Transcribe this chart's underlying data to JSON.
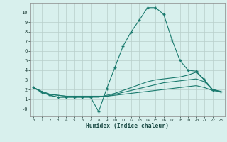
{
  "x": [
    0,
    1,
    2,
    3,
    4,
    5,
    6,
    7,
    8,
    9,
    10,
    11,
    12,
    13,
    14,
    15,
    16,
    17,
    18,
    19,
    20,
    21,
    22,
    23
  ],
  "line1": [
    2.2,
    1.7,
    1.4,
    1.2,
    1.2,
    1.2,
    1.2,
    1.2,
    -0.3,
    2.1,
    4.3,
    6.5,
    8.0,
    9.2,
    10.5,
    10.5,
    9.8,
    7.2,
    5.0,
    4.0,
    3.9,
    3.0,
    1.9,
    1.8
  ],
  "line2": [
    2.2,
    1.7,
    1.4,
    1.2,
    1.2,
    1.2,
    1.2,
    1.2,
    1.2,
    1.4,
    1.6,
    1.9,
    2.2,
    2.5,
    2.8,
    3.0,
    3.1,
    3.2,
    3.3,
    3.5,
    3.8,
    3.0,
    2.0,
    1.8
  ],
  "line3": [
    2.2,
    1.8,
    1.5,
    1.4,
    1.3,
    1.3,
    1.3,
    1.3,
    1.3,
    1.3,
    1.5,
    1.7,
    1.9,
    2.1,
    2.3,
    2.5,
    2.7,
    2.8,
    2.9,
    3.0,
    3.1,
    2.8,
    2.0,
    1.8
  ],
  "line4": [
    2.2,
    1.8,
    1.5,
    1.4,
    1.3,
    1.3,
    1.3,
    1.3,
    1.3,
    1.3,
    1.4,
    1.5,
    1.6,
    1.7,
    1.8,
    1.9,
    2.0,
    2.1,
    2.2,
    2.3,
    2.4,
    2.2,
    1.9,
    1.8
  ],
  "color": "#1a7a6e",
  "bg_color": "#d8f0ed",
  "grid_color": "#b8ceca",
  "xlabel": "Humidex (Indice chaleur)",
  "ylim": [
    -0.8,
    11.0
  ],
  "xlim": [
    -0.5,
    23.5
  ],
  "yticks": [
    0,
    1,
    2,
    3,
    4,
    5,
    6,
    7,
    8,
    9,
    10
  ],
  "ytick_labels": [
    "-0",
    "1",
    "2",
    "3",
    "4",
    "5",
    "6",
    "7",
    "8",
    "9",
    "10"
  ],
  "xtick_labels": [
    "0",
    "1",
    "2",
    "3",
    "4",
    "5",
    "6",
    "7",
    "8",
    "9",
    "10",
    "11",
    "12",
    "13",
    "14",
    "15",
    "16",
    "17",
    "18",
    "19",
    "20",
    "21",
    "22",
    "23"
  ],
  "marker": "+",
  "marker_size": 3,
  "linewidth": 0.8
}
